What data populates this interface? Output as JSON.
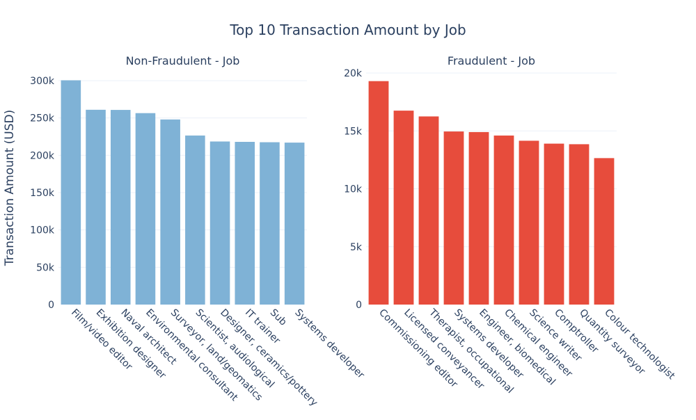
{
  "figure_title": "Top 10 Transaction Amount by Job",
  "y_axis_label": "Transaction Amount (USD)",
  "colors": {
    "text": "#2a3f5f",
    "grid": "#ebf0f8",
    "non_fraud_bar": "#7fb2d6",
    "fraud_bar": "#e74c3c"
  },
  "chart_data": [
    {
      "type": "bar",
      "title": "Non-Fraudulent - Job",
      "ylabel": "Transaction Amount (USD)",
      "categories": [
        "Film/video editor",
        "Exhibition designer",
        "Naval architect",
        "Environmental consultant",
        "Surveyor, land/geomatics",
        "Scientist, audiological",
        "Designer, ceramics/pottery",
        "IT trainer",
        "Sub",
        "Systems developer"
      ],
      "values": [
        300500,
        261000,
        260800,
        256500,
        248000,
        226500,
        218500,
        218000,
        217500,
        217000
      ],
      "ylim": [
        0,
        300000
      ],
      "yticks": [
        0,
        50000,
        100000,
        150000,
        200000,
        250000,
        300000
      ],
      "ytick_labels": [
        "0",
        "50k",
        "100k",
        "150k",
        "200k",
        "250k",
        "300k"
      ],
      "color": "#7fb2d6",
      "grid": true
    },
    {
      "type": "bar",
      "title": "Fraudulent - Job",
      "categories": [
        "Commissioning editor",
        "Licensed conveyancer",
        "Therapist, occupational",
        "Systems developer",
        "Engineer, biomedical",
        "Chemical engineer",
        "Science writer",
        "Comptroller",
        "Quantity surveyor",
        "Colour technologist"
      ],
      "values": [
        19300,
        16750,
        16250,
        14950,
        14900,
        14600,
        14150,
        13900,
        13850,
        12650
      ],
      "ylim": [
        0,
        20000
      ],
      "yticks": [
        0,
        5000,
        10000,
        15000,
        20000
      ],
      "ytick_labels": [
        "0",
        "5k",
        "10k",
        "15k",
        "20k"
      ],
      "color": "#e74c3c",
      "grid": true
    }
  ]
}
